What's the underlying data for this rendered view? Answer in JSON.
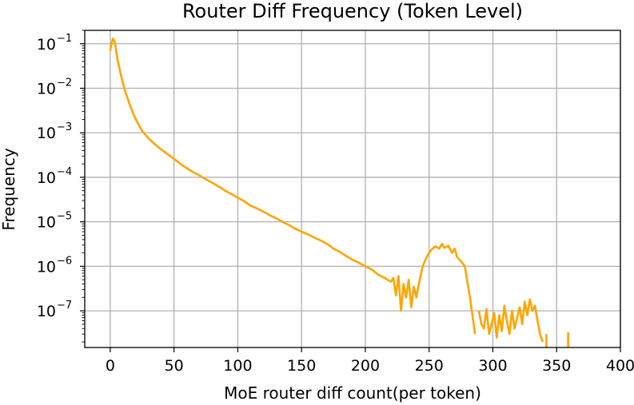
{
  "chart_data": {
    "type": "line",
    "title": "Router Diff Frequency (Token Level)",
    "xlabel": "MoE router diff count(per token)",
    "ylabel": "Frequency",
    "xlim": [
      -20,
      400
    ],
    "ylim": [
      1.5e-08,
      0.2
    ],
    "yscale": "log",
    "grid": true,
    "x_ticks": [
      0,
      50,
      100,
      150,
      200,
      250,
      300,
      350,
      400
    ],
    "x_tick_labels": [
      "0",
      "50",
      "100",
      "150",
      "200",
      "250",
      "300",
      "350",
      "400"
    ],
    "y_ticks": [
      1e-07,
      1e-06,
      1e-05,
      0.0001,
      0.001,
      0.01,
      0.1
    ],
    "y_tick_labels": [
      {
        "base": "10",
        "exp": "−7"
      },
      {
        "base": "10",
        "exp": "−6"
      },
      {
        "base": "10",
        "exp": "−5"
      },
      {
        "base": "10",
        "exp": "−4"
      },
      {
        "base": "10",
        "exp": "−3"
      },
      {
        "base": "10",
        "exp": "−2"
      },
      {
        "base": "10",
        "exp": "−1"
      }
    ],
    "series": [
      {
        "color": "#FFA500",
        "x": [
          0,
          1,
          2,
          3,
          4,
          5,
          6,
          7,
          8,
          10,
          12,
          14,
          16,
          18,
          20,
          25,
          30,
          35,
          40,
          45,
          50,
          55,
          60,
          65,
          70,
          75,
          80,
          85,
          90,
          95,
          100,
          105,
          110,
          115,
          120,
          125,
          130,
          135,
          140,
          145,
          150,
          155,
          160,
          165,
          170,
          175,
          180,
          185,
          190,
          195,
          200,
          205,
          210,
          215,
          220,
          222,
          224,
          226,
          228,
          230,
          232,
          234,
          236,
          238,
          240,
          242,
          245,
          248,
          250,
          252,
          255,
          258,
          260,
          262,
          265,
          268,
          270,
          272,
          275,
          278,
          280,
          282,
          284,
          286
        ],
        "values": [
          0.07,
          0.1,
          0.13,
          0.12,
          0.09,
          0.06,
          0.04,
          0.03,
          0.022,
          0.013,
          0.008,
          0.0055,
          0.0038,
          0.0027,
          0.002,
          0.0011,
          0.00075,
          0.00055,
          0.00042,
          0.00033,
          0.00026,
          0.0002,
          0.00016,
          0.00013,
          0.00011,
          9e-05,
          7.5e-05,
          6.2e-05,
          5e-05,
          4.2e-05,
          3.5e-05,
          2.9e-05,
          2.3e-05,
          2e-05,
          1.7e-05,
          1.4e-05,
          1.2e-05,
          1e-05,
          8.5e-06,
          7e-06,
          6e-06,
          5.2e-06,
          4.4e-06,
          3.8e-06,
          3.2e-06,
          2.5e-06,
          2.1e-06,
          1.7e-06,
          1.4e-06,
          1.2e-06,
          1e-06,
          8.5e-07,
          6.5e-07,
          5.5e-07,
          4.5e-07,
          5.5e-07,
          2.2e-07,
          6e-07,
          1e-07,
          4e-07,
          2e-07,
          5e-07,
          1.2e-07,
          3.5e-07,
          2e-07,
          4e-07,
          1e-06,
          1.6e-06,
          2e-06,
          2.4e-06,
          2.8e-06,
          2.5e-06,
          3.2e-06,
          2.6e-06,
          2.9e-06,
          2e-06,
          2.5e-06,
          1.6e-06,
          1.3e-06,
          1e-06,
          4.5e-07,
          2e-07,
          8e-08,
          3e-08
        ]
      },
      {
        "color": "#FFA500",
        "x": [
          289,
          291,
          293,
          295,
          297,
          299,
          301,
          303,
          305,
          307,
          309,
          311,
          313,
          315,
          317,
          319,
          321,
          323,
          325,
          327,
          329,
          331,
          333,
          335,
          337,
          339
        ],
        "values": [
          1e-07,
          5e-08,
          4e-08,
          1.1e-07,
          3e-08,
          5e-08,
          9e-08,
          2.5e-08,
          8e-08,
          3.5e-08,
          1.3e-07,
          6e-08,
          3e-08,
          1e-07,
          4e-08,
          7e-08,
          1.2e-07,
          5e-08,
          1.6e-07,
          8e-08,
          1.8e-07,
          1e-07,
          1.3e-07,
          6e-08,
          3e-08,
          2e-08
        ]
      },
      {
        "color": "#FFA500",
        "x": [
          342,
          342
        ],
        "values": [
          1.5e-08,
          3e-08
        ]
      },
      {
        "color": "#FFA500",
        "x": [
          359,
          359
        ],
        "values": [
          1.5e-08,
          3.3e-08
        ]
      }
    ]
  }
}
